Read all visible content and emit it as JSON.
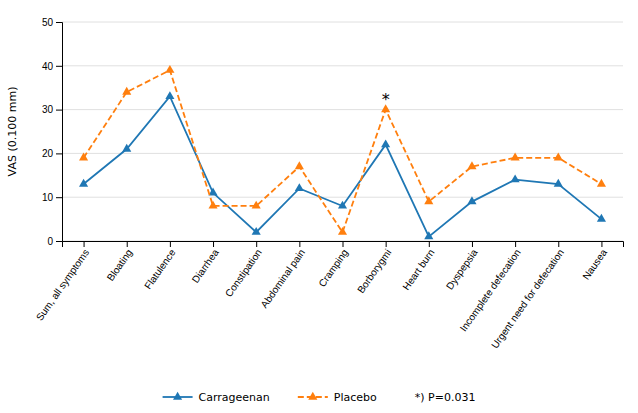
{
  "chart_data": {
    "type": "line",
    "categories": [
      "Sum, all symptoms",
      "Bloating",
      "Flatulence",
      "Diarrhea",
      "Constipation",
      "Abdominal pain",
      "Cramping",
      "Borborygmi",
      "Heart burn",
      "Dyspepsia",
      "Incomplete defecation",
      "Urgent need for defecation",
      "Nausea"
    ],
    "series": [
      {
        "name": "Carrageenan",
        "values": [
          13,
          21,
          33,
          11,
          2,
          12,
          8,
          22,
          1,
          9,
          14,
          13,
          5
        ],
        "marker": "triangle",
        "line_style": "solid"
      },
      {
        "name": "Placebo",
        "values": [
          19,
          34,
          39,
          8,
          8,
          17,
          2,
          30,
          9,
          17,
          19,
          19,
          13
        ],
        "marker": "triangle",
        "line_style": "dashed"
      }
    ],
    "ylabel": "VAS (0.100 mm)",
    "ylim": [
      0,
      50
    ],
    "yticks": [
      0,
      10,
      20,
      30,
      40,
      50
    ],
    "grid": true,
    "legend": "bottom",
    "annotations": [
      {
        "text": "*",
        "x": "Borborygmi",
        "y": 31
      },
      {
        "text": "*) P=0.031"
      }
    ]
  }
}
